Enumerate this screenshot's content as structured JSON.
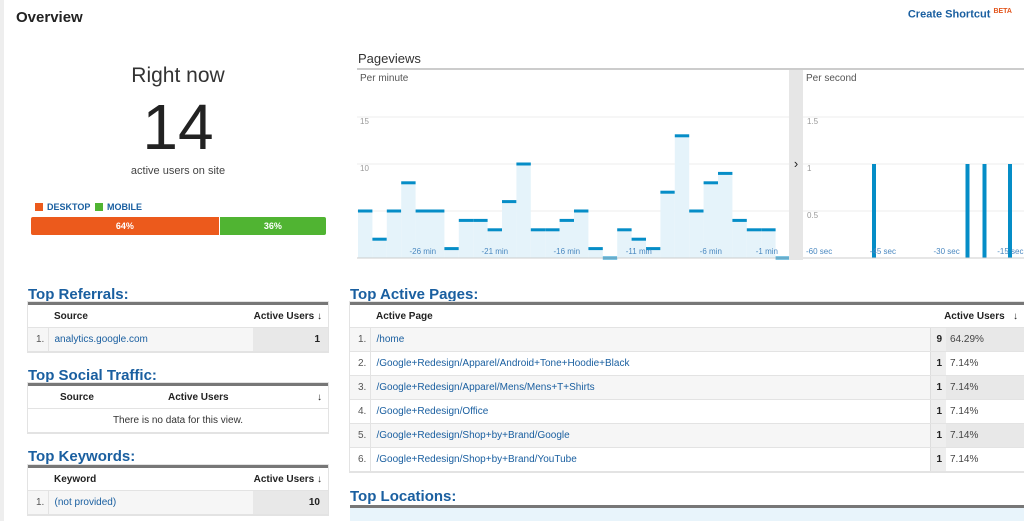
{
  "header": {
    "title": "Overview",
    "shortcut": "Create Shortcut",
    "beta": "BETA"
  },
  "rightnow": {
    "label": "Right now",
    "count": "14",
    "sublabel": "active users on site",
    "legend": [
      {
        "label": "DESKTOP",
        "color": "#ec5a1c"
      },
      {
        "label": "MOBILE",
        "color": "#50b432"
      }
    ],
    "split": [
      {
        "label": "64%",
        "value": 64,
        "color": "#ec5a1c"
      },
      {
        "label": "36%",
        "value": 36,
        "color": "#50b432"
      }
    ]
  },
  "pageviews": {
    "title": "Pageviews",
    "toggle_icon": "chevron-right-icon"
  },
  "chart_data": [
    {
      "type": "bar",
      "title": "Per minute",
      "ylim": [
        0,
        17
      ],
      "yticks": [
        "5",
        "10",
        "15"
      ],
      "ytick_values": [
        5,
        10,
        15
      ],
      "xticks": [
        "-26 min",
        "-21 min",
        "-16 min",
        "-11 min",
        "-6 min",
        "-1 min"
      ],
      "x": [
        -30,
        -29,
        -28,
        -27,
        -26,
        -25,
        -24,
        -23,
        -22,
        -21,
        -20,
        -19,
        -18,
        -17,
        -16,
        -15,
        -14,
        -13,
        -12,
        -11,
        -10,
        -9,
        -8,
        -7,
        -6,
        -5,
        -4,
        -3,
        -2,
        -1
      ],
      "values": [
        5,
        2,
        5,
        8,
        5,
        5,
        1,
        4,
        4,
        3,
        6,
        10,
        3,
        3,
        4,
        5,
        1,
        0,
        3,
        2,
        1,
        7,
        13,
        5,
        8,
        9,
        4,
        3,
        3,
        0
      ],
      "color": "#058dc7"
    },
    {
      "type": "bar",
      "title": "Per second",
      "ylim": [
        0,
        1.7
      ],
      "yticks": [
        "0.5",
        "1",
        "1.5"
      ],
      "ytick_values": [
        0.5,
        1,
        1.5
      ],
      "xticks": [
        "-60 sec",
        "-45 sec",
        "-30 sec",
        "-15 sec"
      ],
      "xtick_values": [
        -60,
        -45,
        -30,
        -15
      ],
      "x": [
        -44,
        -22,
        -18,
        -12
      ],
      "values": [
        1,
        1,
        1,
        1
      ],
      "color": "#058dc7"
    }
  ],
  "referrals": {
    "title": "Top Referrals:",
    "cols": [
      "Source",
      "Active Users"
    ],
    "rows": [
      {
        "n": "1.",
        "source": "analytics.google.com",
        "users": "1"
      }
    ]
  },
  "social": {
    "title": "Top Social Traffic:",
    "cols": [
      "Source",
      "Active Users"
    ],
    "empty": "There is no data for this view."
  },
  "keywords": {
    "title": "Top Keywords:",
    "cols": [
      "Keyword",
      "Active Users"
    ],
    "rows": [
      {
        "n": "1.",
        "source": "(not provided)",
        "users": "10"
      }
    ]
  },
  "pages": {
    "title": "Top Active Pages:",
    "cols": [
      "Active Page",
      "Active Users"
    ],
    "rows": [
      {
        "n": "1.",
        "page": "/home",
        "users": "9",
        "pct": "64.29%"
      },
      {
        "n": "2.",
        "page": "/Google+Redesign/Apparel/Android+Tone+Hoodie+Black",
        "users": "1",
        "pct": "7.14%"
      },
      {
        "n": "3.",
        "page": "/Google+Redesign/Apparel/Mens/Mens+T+Shirts",
        "users": "1",
        "pct": "7.14%"
      },
      {
        "n": "4.",
        "page": "/Google+Redesign/Office",
        "users": "1",
        "pct": "7.14%"
      },
      {
        "n": "5.",
        "page": "/Google+Redesign/Shop+by+Brand/Google",
        "users": "1",
        "pct": "7.14%"
      },
      {
        "n": "6.",
        "page": "/Google+Redesign/Shop+by+Brand/YouTube",
        "users": "1",
        "pct": "7.14%"
      }
    ]
  },
  "locations": {
    "title": "Top Locations:"
  }
}
